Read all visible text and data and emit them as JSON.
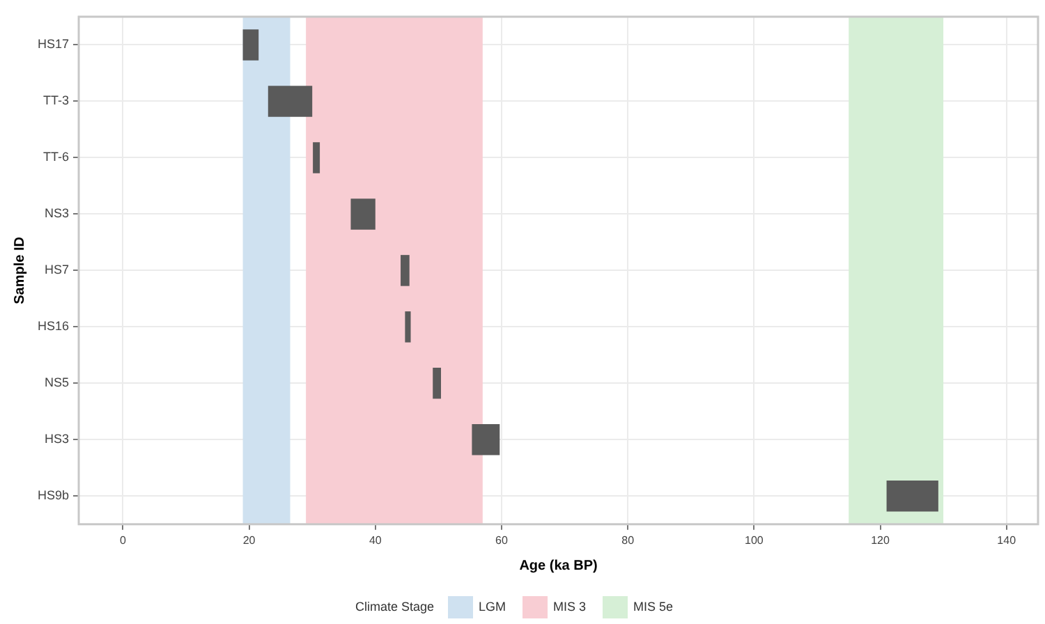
{
  "chart_data": {
    "type": "bar",
    "orientation": "horizontal",
    "xlabel": "Age (ka BP)",
    "ylabel": "Sample ID",
    "legend_title": "Climate Stage",
    "legend": "bottom",
    "grid": true,
    "categories": [
      "HS17",
      "TT-3",
      "TT-6",
      "NS3",
      "HS7",
      "HS16",
      "NS5",
      "HS3",
      "HS9b"
    ],
    "base": [
      19,
      23,
      30.1,
      36.1,
      44,
      44.7,
      49.1,
      55.3,
      121
    ],
    "values": [
      2.5,
      7,
      1.1,
      3.9,
      1.4,
      0.9,
      1.3,
      4.4,
      8.2
    ],
    "color": "#5a5a5a",
    "xlim": [
      -7,
      145
    ],
    "xticks": [
      0,
      20,
      40,
      60,
      80,
      100,
      120,
      140
    ],
    "bands": [
      {
        "axis": "x",
        "from": 19,
        "to": 26.5,
        "label": "LGM",
        "color": "#cfe1f0"
      },
      {
        "axis": "x",
        "from": 29,
        "to": 57,
        "label": "MIS 3",
        "color": "#f8cdd3"
      },
      {
        "axis": "x",
        "from": 115,
        "to": 130,
        "label": "MIS 5e",
        "color": "#d6efd6"
      }
    ]
  }
}
